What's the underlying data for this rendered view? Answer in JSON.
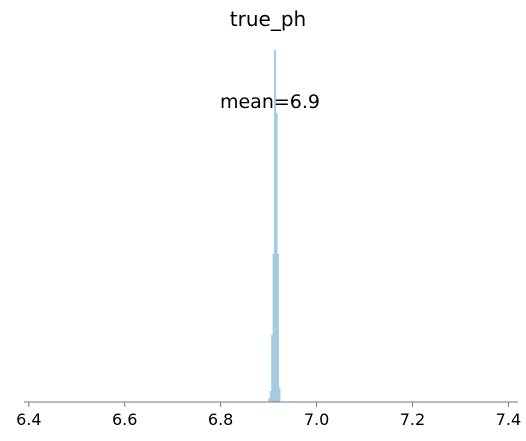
{
  "chart_data": {
    "type": "bar",
    "title": "true_ph",
    "annotation": "mean=6.9",
    "xlabel": "",
    "ylabel": "",
    "xlim": [
      6.39,
      7.42
    ],
    "ylim": [
      0,
      1.0
    ],
    "xticks": [
      6.4,
      6.6,
      6.8,
      7.0,
      7.2,
      7.4
    ],
    "xtick_labels": [
      "6.4",
      "6.6",
      "6.8",
      "7.0",
      "7.2",
      "7.4"
    ],
    "yaxis_visible": false,
    "grid": false,
    "bin_width": 0.003,
    "bins": [
      {
        "x": 6.9015,
        "height": 0.01
      },
      {
        "x": 6.9045,
        "height": 0.03
      },
      {
        "x": 6.9075,
        "height": 0.19
      },
      {
        "x": 6.9105,
        "height": 0.42
      },
      {
        "x": 6.9135,
        "height": 1.0
      },
      {
        "x": 6.9165,
        "height": 0.82
      },
      {
        "x": 6.9195,
        "height": 0.42
      },
      {
        "x": 6.9225,
        "height": 0.04
      }
    ],
    "color": "#a6cbe0"
  }
}
